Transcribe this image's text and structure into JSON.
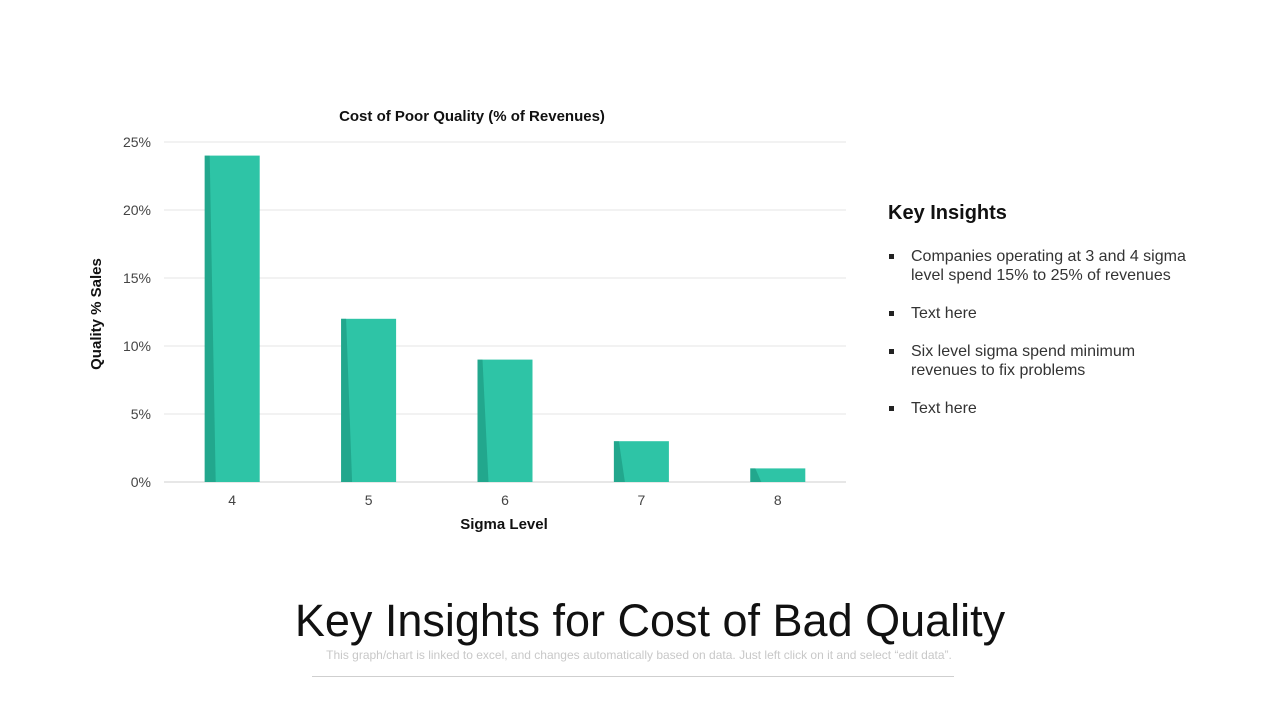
{
  "chart_data": {
    "type": "bar",
    "title": "Cost of Poor Quality (% of Revenues)",
    "xlabel": "Sigma Level",
    "ylabel": "Quality % Sales",
    "categories": [
      "4",
      "5",
      "6",
      "7",
      "8"
    ],
    "values": [
      24,
      12,
      9,
      3,
      1
    ],
    "ylim": [
      0,
      25
    ],
    "y_ticks": [
      {
        "value": 0,
        "label": "0%"
      },
      {
        "value": 5,
        "label": "5%"
      },
      {
        "value": 10,
        "label": "10%"
      },
      {
        "value": 15,
        "label": "15%"
      },
      {
        "value": 20,
        "label": "20%"
      },
      {
        "value": 25,
        "label": "25%"
      }
    ],
    "grid": true,
    "bar_color": "#2ec4a6",
    "bar_shade_color": "#1a8f78"
  },
  "insights": {
    "heading": "Key Insights",
    "items": [
      "Companies operating at 3 and 4 sigma level spend 15% to 25% of revenues",
      "Text here",
      "Six level sigma spend minimum revenues to fix problems",
      "Text here"
    ]
  },
  "page": {
    "title": "Key Insights for Cost of Bad Quality",
    "subtitle": "This graph/chart is linked to excel, and changes automatically based on data. Just left click on it and select “edit data”."
  }
}
